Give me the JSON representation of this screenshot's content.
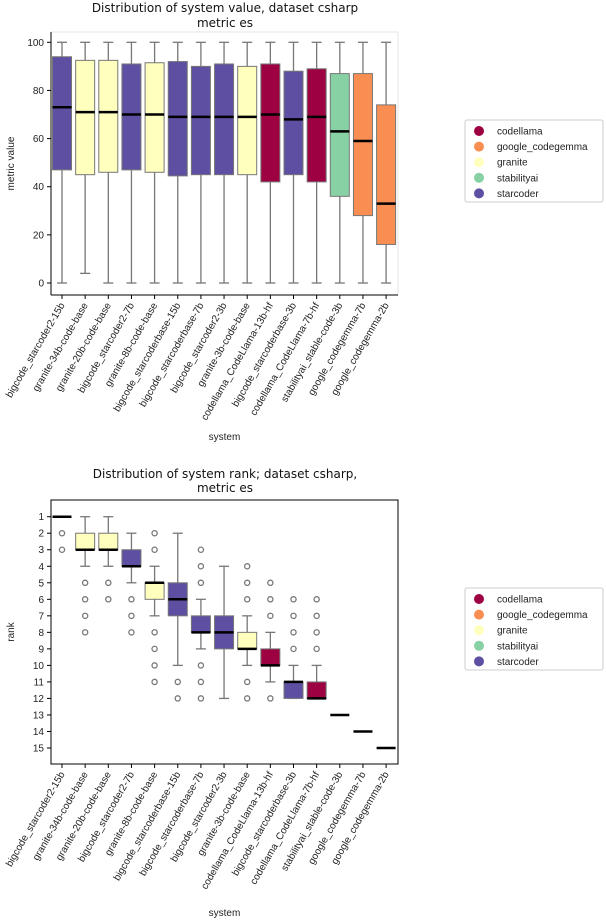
{
  "colors": {
    "codellama": "#9e0142",
    "google_codegemma": "#f98e52",
    "granite": "#ffffbe",
    "stabilityai": "#88d1a4",
    "starcoder": "#5e4fa2"
  },
  "chart_data": [
    {
      "type": "box",
      "title": [
        "Distribution of system value, dataset csharp",
        "metric es"
      ],
      "xlabel": "system",
      "ylabel": "metric value",
      "ylim": [
        -3,
        105
      ],
      "yticks": [
        0,
        20,
        40,
        60,
        80,
        100
      ],
      "legend": {
        "placement": "right",
        "entries": [
          "codellama",
          "google_codegemma",
          "granite",
          "stabilityai",
          "starcoder"
        ]
      },
      "boxes": [
        {
          "system": "bigcode_starcoder2-15b",
          "family": "starcoder",
          "whislo": 0,
          "q1": 47,
          "med": 73,
          "q3": 94,
          "whishi": 100,
          "fliers": []
        },
        {
          "system": "granite-34b-code-base",
          "family": "granite",
          "whislo": 4,
          "q1": 45,
          "med": 71,
          "q3": 92.5,
          "whishi": 100,
          "fliers": []
        },
        {
          "system": "granite-20b-code-base",
          "family": "granite",
          "whislo": 0,
          "q1": 46,
          "med": 71,
          "q3": 92.5,
          "whishi": 100,
          "fliers": []
        },
        {
          "system": "bigcode_starcoder2-7b",
          "family": "starcoder",
          "whislo": 0,
          "q1": 47,
          "med": 70,
          "q3": 91,
          "whishi": 100,
          "fliers": []
        },
        {
          "system": "granite-8b-code-base",
          "family": "granite",
          "whislo": 0,
          "q1": 46,
          "med": 70,
          "q3": 91.5,
          "whishi": 100,
          "fliers": []
        },
        {
          "system": "bigcode_starcoderbase-15b",
          "family": "starcoder",
          "whislo": 0,
          "q1": 44.5,
          "med": 69,
          "q3": 92,
          "whishi": 100,
          "fliers": []
        },
        {
          "system": "bigcode_starcoderbase-7b",
          "family": "starcoder",
          "whislo": 0,
          "q1": 45,
          "med": 69,
          "q3": 90,
          "whishi": 100,
          "fliers": []
        },
        {
          "system": "bigcode_starcoder2-3b",
          "family": "starcoder",
          "whislo": 0,
          "q1": 45,
          "med": 69,
          "q3": 91,
          "whishi": 100,
          "fliers": []
        },
        {
          "system": "granite-3b-code-base",
          "family": "granite",
          "whislo": 0,
          "q1": 45,
          "med": 69,
          "q3": 90,
          "whishi": 100,
          "fliers": []
        },
        {
          "system": "codellama_CodeLlama-13b-hf",
          "family": "codellama",
          "whislo": 0,
          "q1": 42,
          "med": 70,
          "q3": 91,
          "whishi": 100,
          "fliers": []
        },
        {
          "system": "bigcode_starcoderbase-3b",
          "family": "starcoder",
          "whislo": 0,
          "q1": 45,
          "med": 68,
          "q3": 88,
          "whishi": 100,
          "fliers": []
        },
        {
          "system": "codellama_CodeLlama-7b-hf",
          "family": "codellama",
          "whislo": 0,
          "q1": 42,
          "med": 69,
          "q3": 89,
          "whishi": 100,
          "fliers": []
        },
        {
          "system": "stabilityai_stable-code-3b",
          "family": "stabilityai",
          "whislo": 0,
          "q1": 36,
          "med": 63,
          "q3": 87,
          "whishi": 100,
          "fliers": []
        },
        {
          "system": "google_codegemma-7b",
          "family": "google_codegemma",
          "whislo": 0,
          "q1": 28,
          "med": 59,
          "q3": 87,
          "whishi": 100,
          "fliers": []
        },
        {
          "system": "google_codegemma-2b",
          "family": "google_codegemma",
          "whislo": 0,
          "q1": 16,
          "med": 33,
          "q3": 74,
          "whishi": 100,
          "fliers": []
        }
      ]
    },
    {
      "type": "box",
      "title": [
        "Distribution of system rank; dataset csharp,",
        "metric es"
      ],
      "xlabel": "system",
      "ylabel": "rank",
      "ylim": [
        16,
        0
      ],
      "inverted_y": true,
      "yticks": [
        1,
        2,
        3,
        4,
        5,
        6,
        7,
        8,
        9,
        10,
        11,
        12,
        13,
        14,
        15
      ],
      "legend": {
        "placement": "right",
        "entries": [
          "codellama",
          "google_codegemma",
          "granite",
          "stabilityai",
          "starcoder"
        ]
      },
      "boxes": [
        {
          "system": "bigcode_starcoder2-15b",
          "family": "starcoder",
          "whislo": 1,
          "q1": 1,
          "med": 1,
          "q3": 1,
          "whishi": 1,
          "fliers": [
            2,
            3
          ]
        },
        {
          "system": "granite-34b-code-base",
          "family": "granite",
          "whislo": 1,
          "q1": 2,
          "med": 3,
          "q3": 3,
          "whishi": 4,
          "fliers": [
            5,
            6,
            7,
            8
          ]
        },
        {
          "system": "granite-20b-code-base",
          "family": "granite",
          "whislo": 1,
          "q1": 2,
          "med": 3,
          "q3": 3,
          "whishi": 4,
          "fliers": [
            5,
            6
          ]
        },
        {
          "system": "bigcode_starcoder2-7b",
          "family": "starcoder",
          "whislo": 2,
          "q1": 3,
          "med": 4,
          "q3": 4,
          "whishi": 5,
          "fliers": [
            6,
            7,
            8
          ]
        },
        {
          "system": "granite-8b-code-base",
          "family": "granite",
          "whislo": 4,
          "q1": 5,
          "med": 5,
          "q3": 6,
          "whishi": 7,
          "fliers": [
            2,
            3,
            8,
            9,
            10,
            11
          ]
        },
        {
          "system": "bigcode_starcoderbase-15b",
          "family": "starcoder",
          "whislo": 2,
          "q1": 5,
          "med": 6,
          "q3": 7,
          "whishi": 10,
          "fliers": [
            11,
            12
          ]
        },
        {
          "system": "bigcode_starcoderbase-7b",
          "family": "starcoder",
          "whislo": 6,
          "q1": 7,
          "med": 8,
          "q3": 8,
          "whishi": 9,
          "fliers": [
            3,
            4,
            5,
            10,
            11,
            12
          ]
        },
        {
          "system": "bigcode_starcoder2-3b",
          "family": "starcoder",
          "whislo": 4,
          "q1": 7,
          "med": 8,
          "q3": 9,
          "whishi": 12,
          "fliers": []
        },
        {
          "system": "granite-3b-code-base",
          "family": "granite",
          "whislo": 7,
          "q1": 8,
          "med": 9,
          "q3": 9,
          "whishi": 10,
          "fliers": [
            4,
            5,
            6,
            11,
            12
          ]
        },
        {
          "system": "codellama_CodeLlama-13b-hf",
          "family": "codellama",
          "whislo": 8,
          "q1": 9,
          "med": 10,
          "q3": 10,
          "whishi": 11,
          "fliers": [
            5,
            6,
            7,
            12
          ]
        },
        {
          "system": "bigcode_starcoderbase-3b",
          "family": "starcoder",
          "whislo": 10,
          "q1": 11,
          "med": 11,
          "q3": 12,
          "whishi": 12,
          "fliers": [
            6,
            7,
            8,
            9
          ]
        },
        {
          "system": "codellama_CodeLlama-7b-hf",
          "family": "codellama",
          "whislo": 10,
          "q1": 11,
          "med": 12,
          "q3": 12,
          "whishi": 12,
          "fliers": [
            6,
            7,
            8,
            9
          ]
        },
        {
          "system": "stabilityai_stable-code-3b",
          "family": "stabilityai",
          "whislo": 13,
          "q1": 13,
          "med": 13,
          "q3": 13,
          "whishi": 13,
          "fliers": []
        },
        {
          "system": "google_codegemma-7b",
          "family": "google_codegemma",
          "whislo": 14,
          "q1": 14,
          "med": 14,
          "q3": 14,
          "whishi": 14,
          "fliers": []
        },
        {
          "system": "google_codegemma-2b",
          "family": "google_codegemma",
          "whislo": 15,
          "q1": 15,
          "med": 15,
          "q3": 15,
          "whishi": 15,
          "fliers": []
        }
      ]
    }
  ]
}
